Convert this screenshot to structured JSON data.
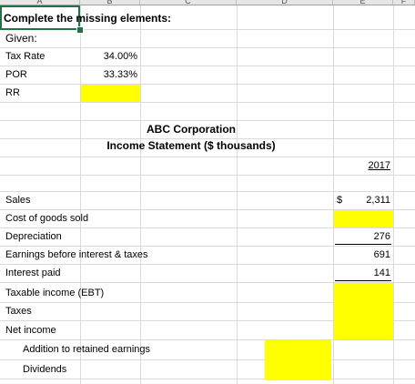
{
  "columns": [
    "A",
    "B",
    "C",
    "D",
    "E",
    "F"
  ],
  "prompt": "Complete the missing elements:",
  "given": {
    "label": "Given:",
    "tax_rate_label": "Tax Rate",
    "tax_rate_value": "34.00%",
    "por_label": "POR",
    "por_value": "33.33%",
    "rr_label": "RR"
  },
  "statement": {
    "company": "ABC Corporation",
    "title": "Income Statement ($ thousands)",
    "year": "2017",
    "rows": {
      "sales": {
        "label": "Sales",
        "currency": "$",
        "value": "2,311"
      },
      "cogs": {
        "label": "Cost of goods sold"
      },
      "depreciation": {
        "label": "Depreciation",
        "value": "276"
      },
      "ebit": {
        "label": "Earnings before interest & taxes",
        "value": "691"
      },
      "interest": {
        "label": "Interest paid",
        "value": "141"
      },
      "taxable": {
        "label": "Taxable income (EBT)"
      },
      "taxes": {
        "label": "Taxes"
      },
      "net_income": {
        "label": "Net income"
      },
      "retained": {
        "label": "Addition to retained earnings"
      },
      "dividends": {
        "label": "Dividends"
      }
    }
  },
  "colors": {
    "highlight": "#ffff00",
    "active_cell_border": "#217346"
  }
}
